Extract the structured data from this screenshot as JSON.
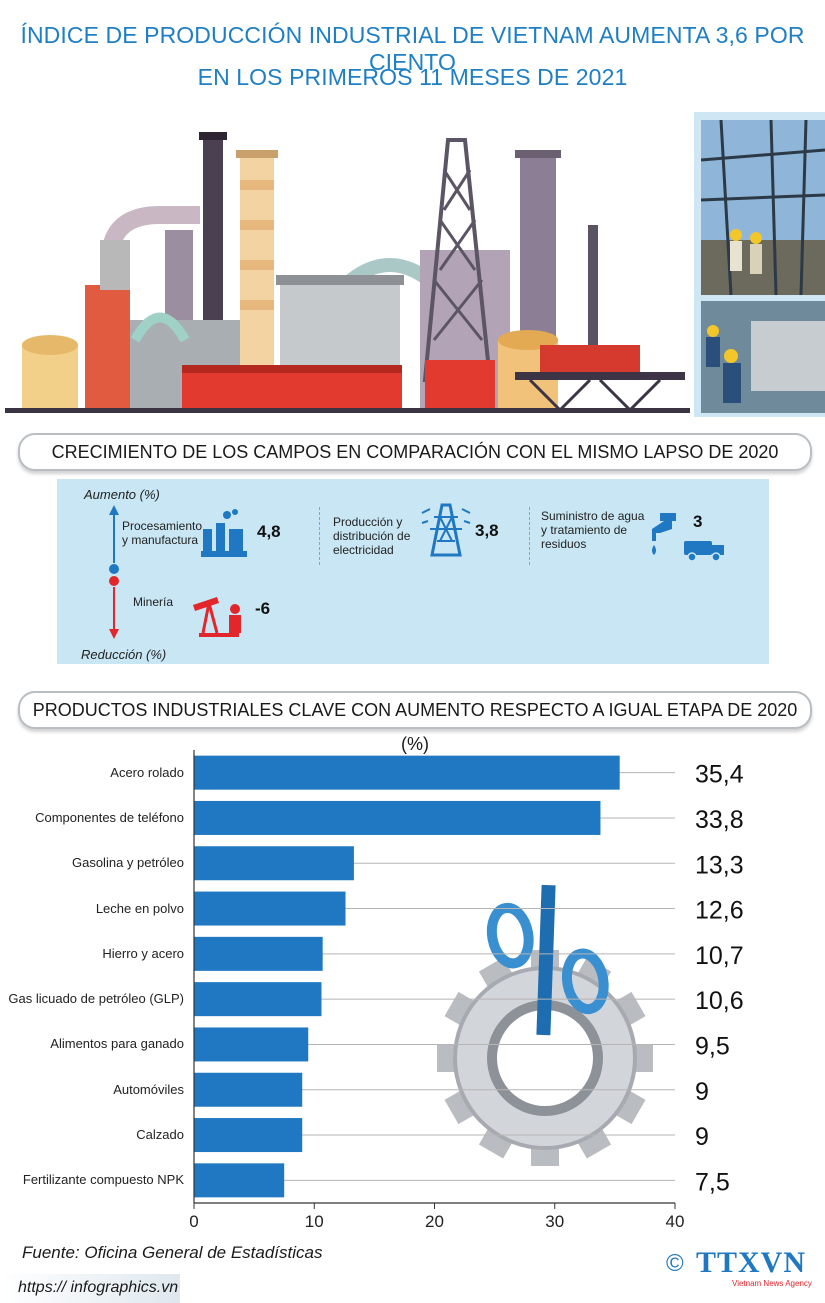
{
  "header": {
    "title_line1": "ÍNDICE DE PRODUCCIÓN INDUSTRIAL DE VIETNAM AUMENTA 3,6 POR CIENTO",
    "title_line2": "EN LOS PRIMEROS 11 MESES DE 2021"
  },
  "growth_section": {
    "heading": "CRECIMIENTO DE LOS CAMPOS EN COMPARACIÓN CON EL MISMO LAPSO DE 2020",
    "increase_label": "Aumento (%)",
    "decrease_label": "Reducción (%)",
    "fields": [
      {
        "name_line1": "Procesamiento",
        "name_line2": "y manufactura",
        "value": "4,8",
        "icon": "factory-icon"
      },
      {
        "name_line1": "Producción y",
        "name_line2": "distribución de",
        "name_line3": "electricidad",
        "value": "3,8",
        "icon": "power-tower-icon"
      },
      {
        "name_line1": "Suministro de agua",
        "name_line2": "y tratamiento de",
        "name_line3": "residuos",
        "value": "3",
        "icon": "water-truck-icon"
      },
      {
        "name_line1": "Minería",
        "value": "-6",
        "icon": "oil-pump-icon"
      }
    ]
  },
  "products_section": {
    "heading": "PRODUCTOS INDUSTRIALES CLAVE CON AUMENTO RESPECTO A IGUAL ETAPA DE 2020 (%)"
  },
  "chart_data": {
    "type": "bar",
    "orientation": "horizontal",
    "categories": [
      "Acero rolado",
      "Componentes de teléfono",
      "Gasolina y petróleo",
      "Leche en polvo",
      "Hierro y acero",
      "Gas licuado de petróleo (GLP)",
      "Alimentos para ganado",
      "Automóviles",
      "Calzado",
      "Fertilizante compuesto NPK"
    ],
    "values": [
      35.4,
      33.8,
      13.3,
      12.6,
      10.7,
      10.6,
      9.5,
      9,
      9,
      7.5
    ],
    "value_labels": [
      "35,4",
      "33,8",
      "13,3",
      "12,6",
      "10,7",
      "10,6",
      "9,5",
      "9",
      "9",
      "7,5"
    ],
    "xlim": [
      0,
      40
    ],
    "xticks": [
      0,
      10,
      20,
      30,
      40
    ],
    "grid": true,
    "bar_color": "#1f78c1"
  },
  "footer": {
    "source": "Fuente: Oficina General de Estadísticas",
    "url": "https:// infographics.vn",
    "copyright": "©",
    "logo": "TTXVN",
    "logo_sub": "Vietnam News Agency"
  },
  "colors": {
    "title": "#1f7fc4",
    "panel": "#c8e6f3",
    "icon_blue": "#1f78c1",
    "icon_red": "#e2262b"
  }
}
